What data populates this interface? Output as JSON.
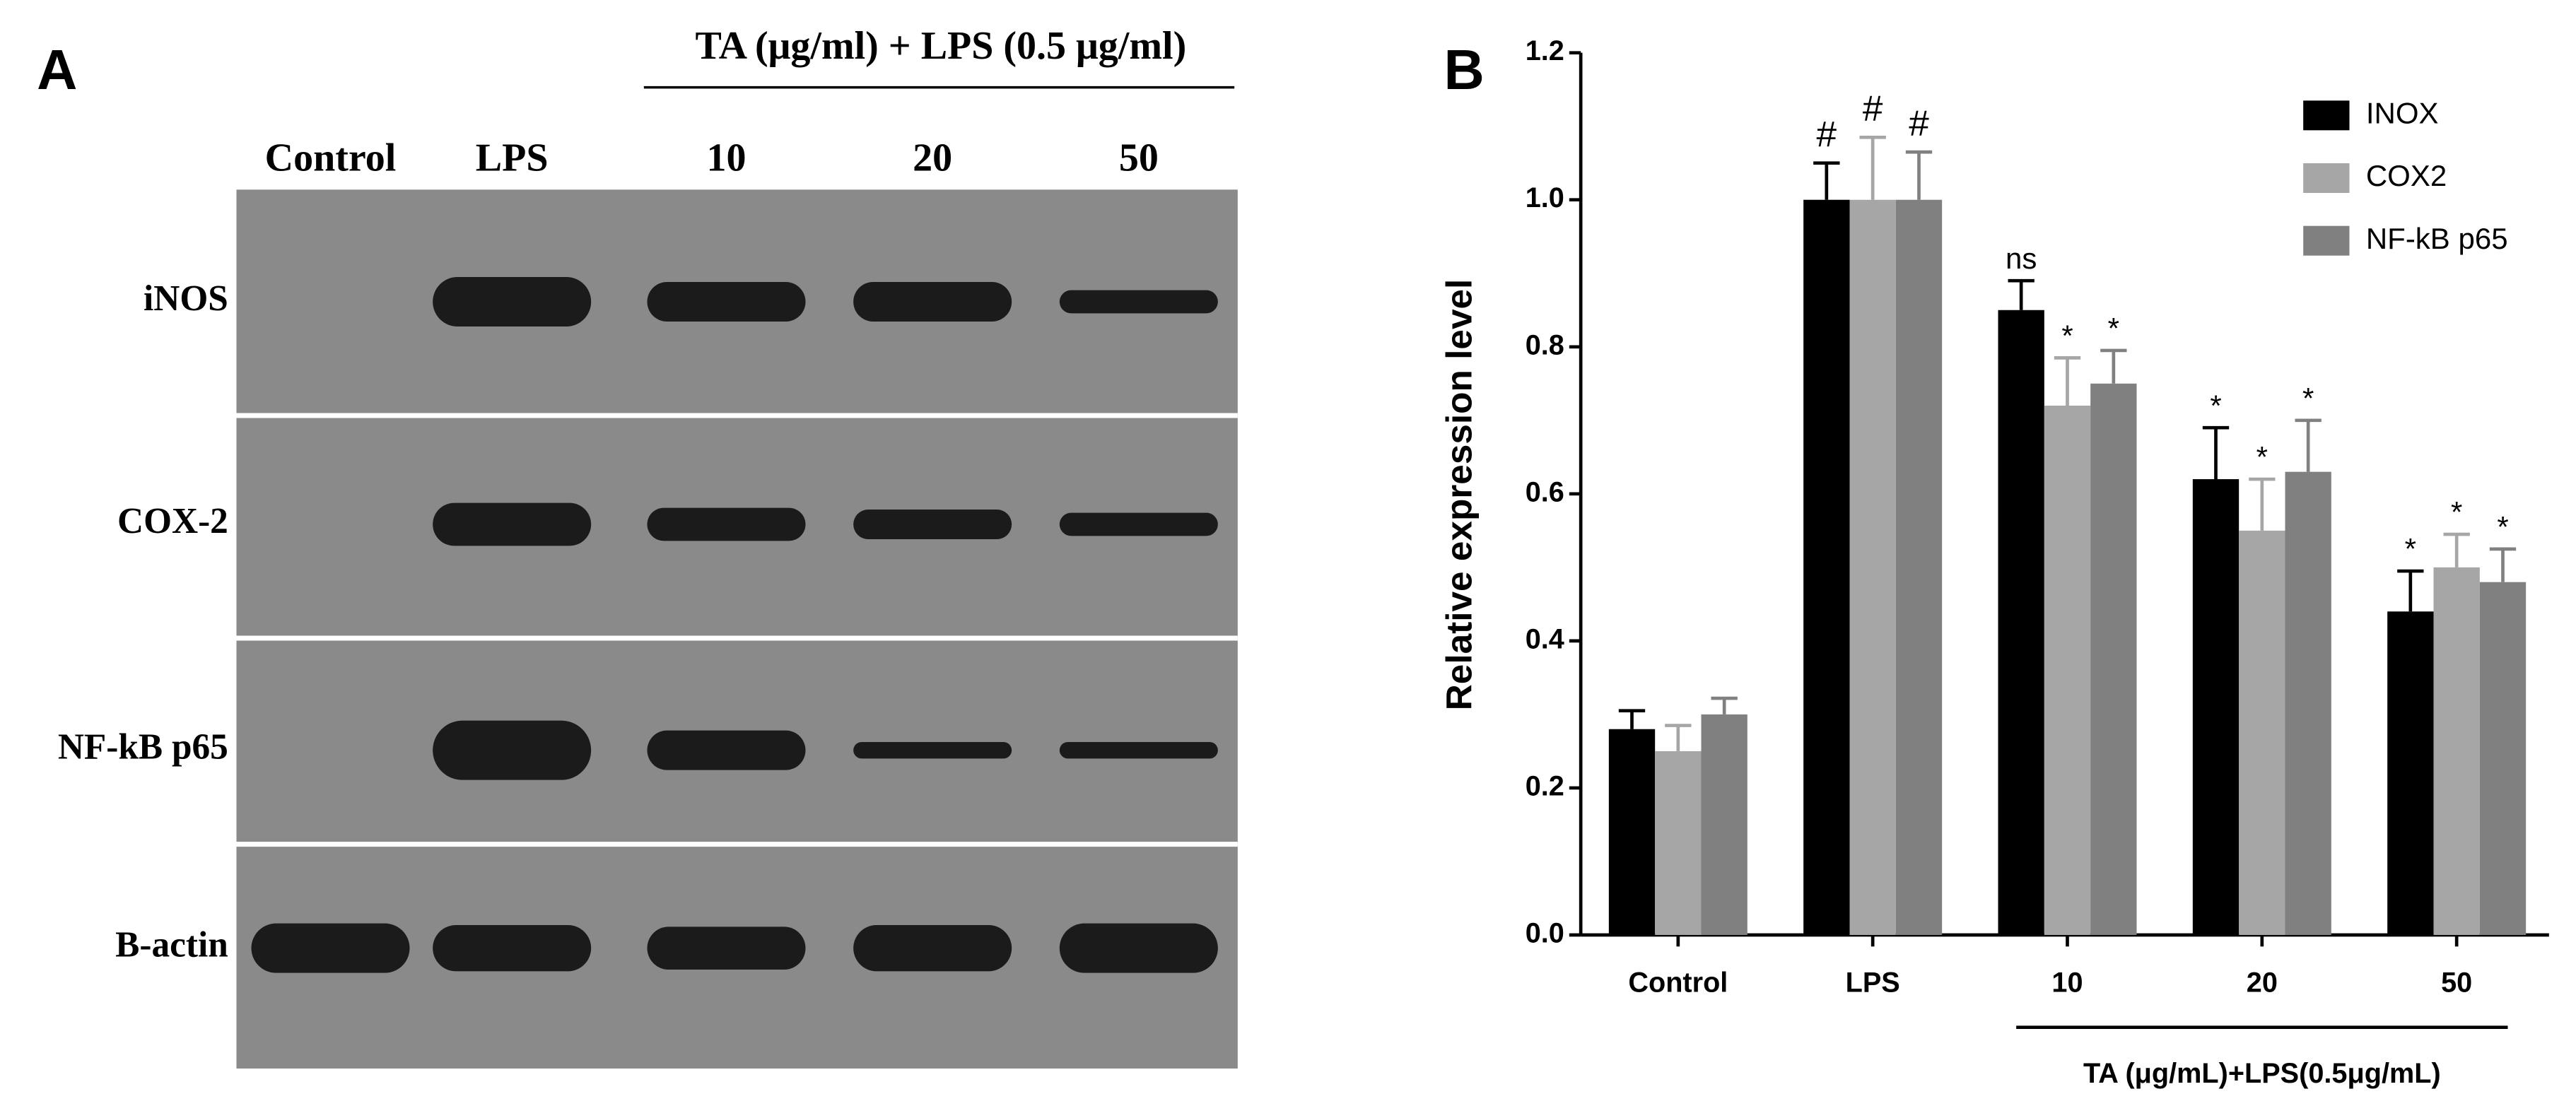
{
  "blot": {
    "panel_label": "A",
    "treatment_label": "TA (μg/ml) + LPS (0.5 μg/ml)",
    "lanes": [
      "Control",
      "LPS",
      "10",
      "20",
      "50"
    ],
    "proteins": [
      "iNOS",
      "COX-2",
      "NF-kB p65",
      "B-actin"
    ]
  },
  "chart_data": {
    "type": "bar",
    "panel_label": "B",
    "y_label": "Relative expression level",
    "group_label": "TA (μg/mL)+LPS(0.5μg/mL)",
    "categories": [
      "Control",
      "LPS",
      "10",
      "20",
      "50"
    ],
    "ylim": [
      0,
      1.2
    ],
    "yticks": [
      {
        "value": 0,
        "label": "0.0"
      },
      0.2,
      0.4,
      0.6,
      0.8,
      {
        "value": 1,
        "label": "1.0"
      },
      1.2
    ],
    "series": [
      {
        "name": "INOX",
        "color": "#000000",
        "values": [
          0.28,
          1.0,
          0.85,
          0.62,
          0.44
        ],
        "errors": [
          0.025,
          0.05,
          0.04,
          0.07,
          0.055
        ],
        "annotations": [
          null,
          "#",
          "ns",
          "*",
          "*"
        ]
      },
      {
        "name": "COX2",
        "color": "#a6a6a6",
        "values": [
          0.25,
          1.0,
          0.72,
          0.55,
          0.5
        ],
        "errors": [
          0.035,
          0.085,
          0.065,
          0.07,
          0.045
        ],
        "annotations": [
          null,
          "#",
          "*",
          "*",
          "*"
        ]
      },
      {
        "name": "NF-kB p65",
        "color": "#808080",
        "values": [
          0.3,
          1.0,
          0.75,
          0.63,
          0.48
        ],
        "errors": [
          0.022,
          0.065,
          0.045,
          0.07,
          0.045
        ],
        "annotations": [
          null,
          "#",
          "*",
          "*",
          "*"
        ]
      }
    ]
  }
}
